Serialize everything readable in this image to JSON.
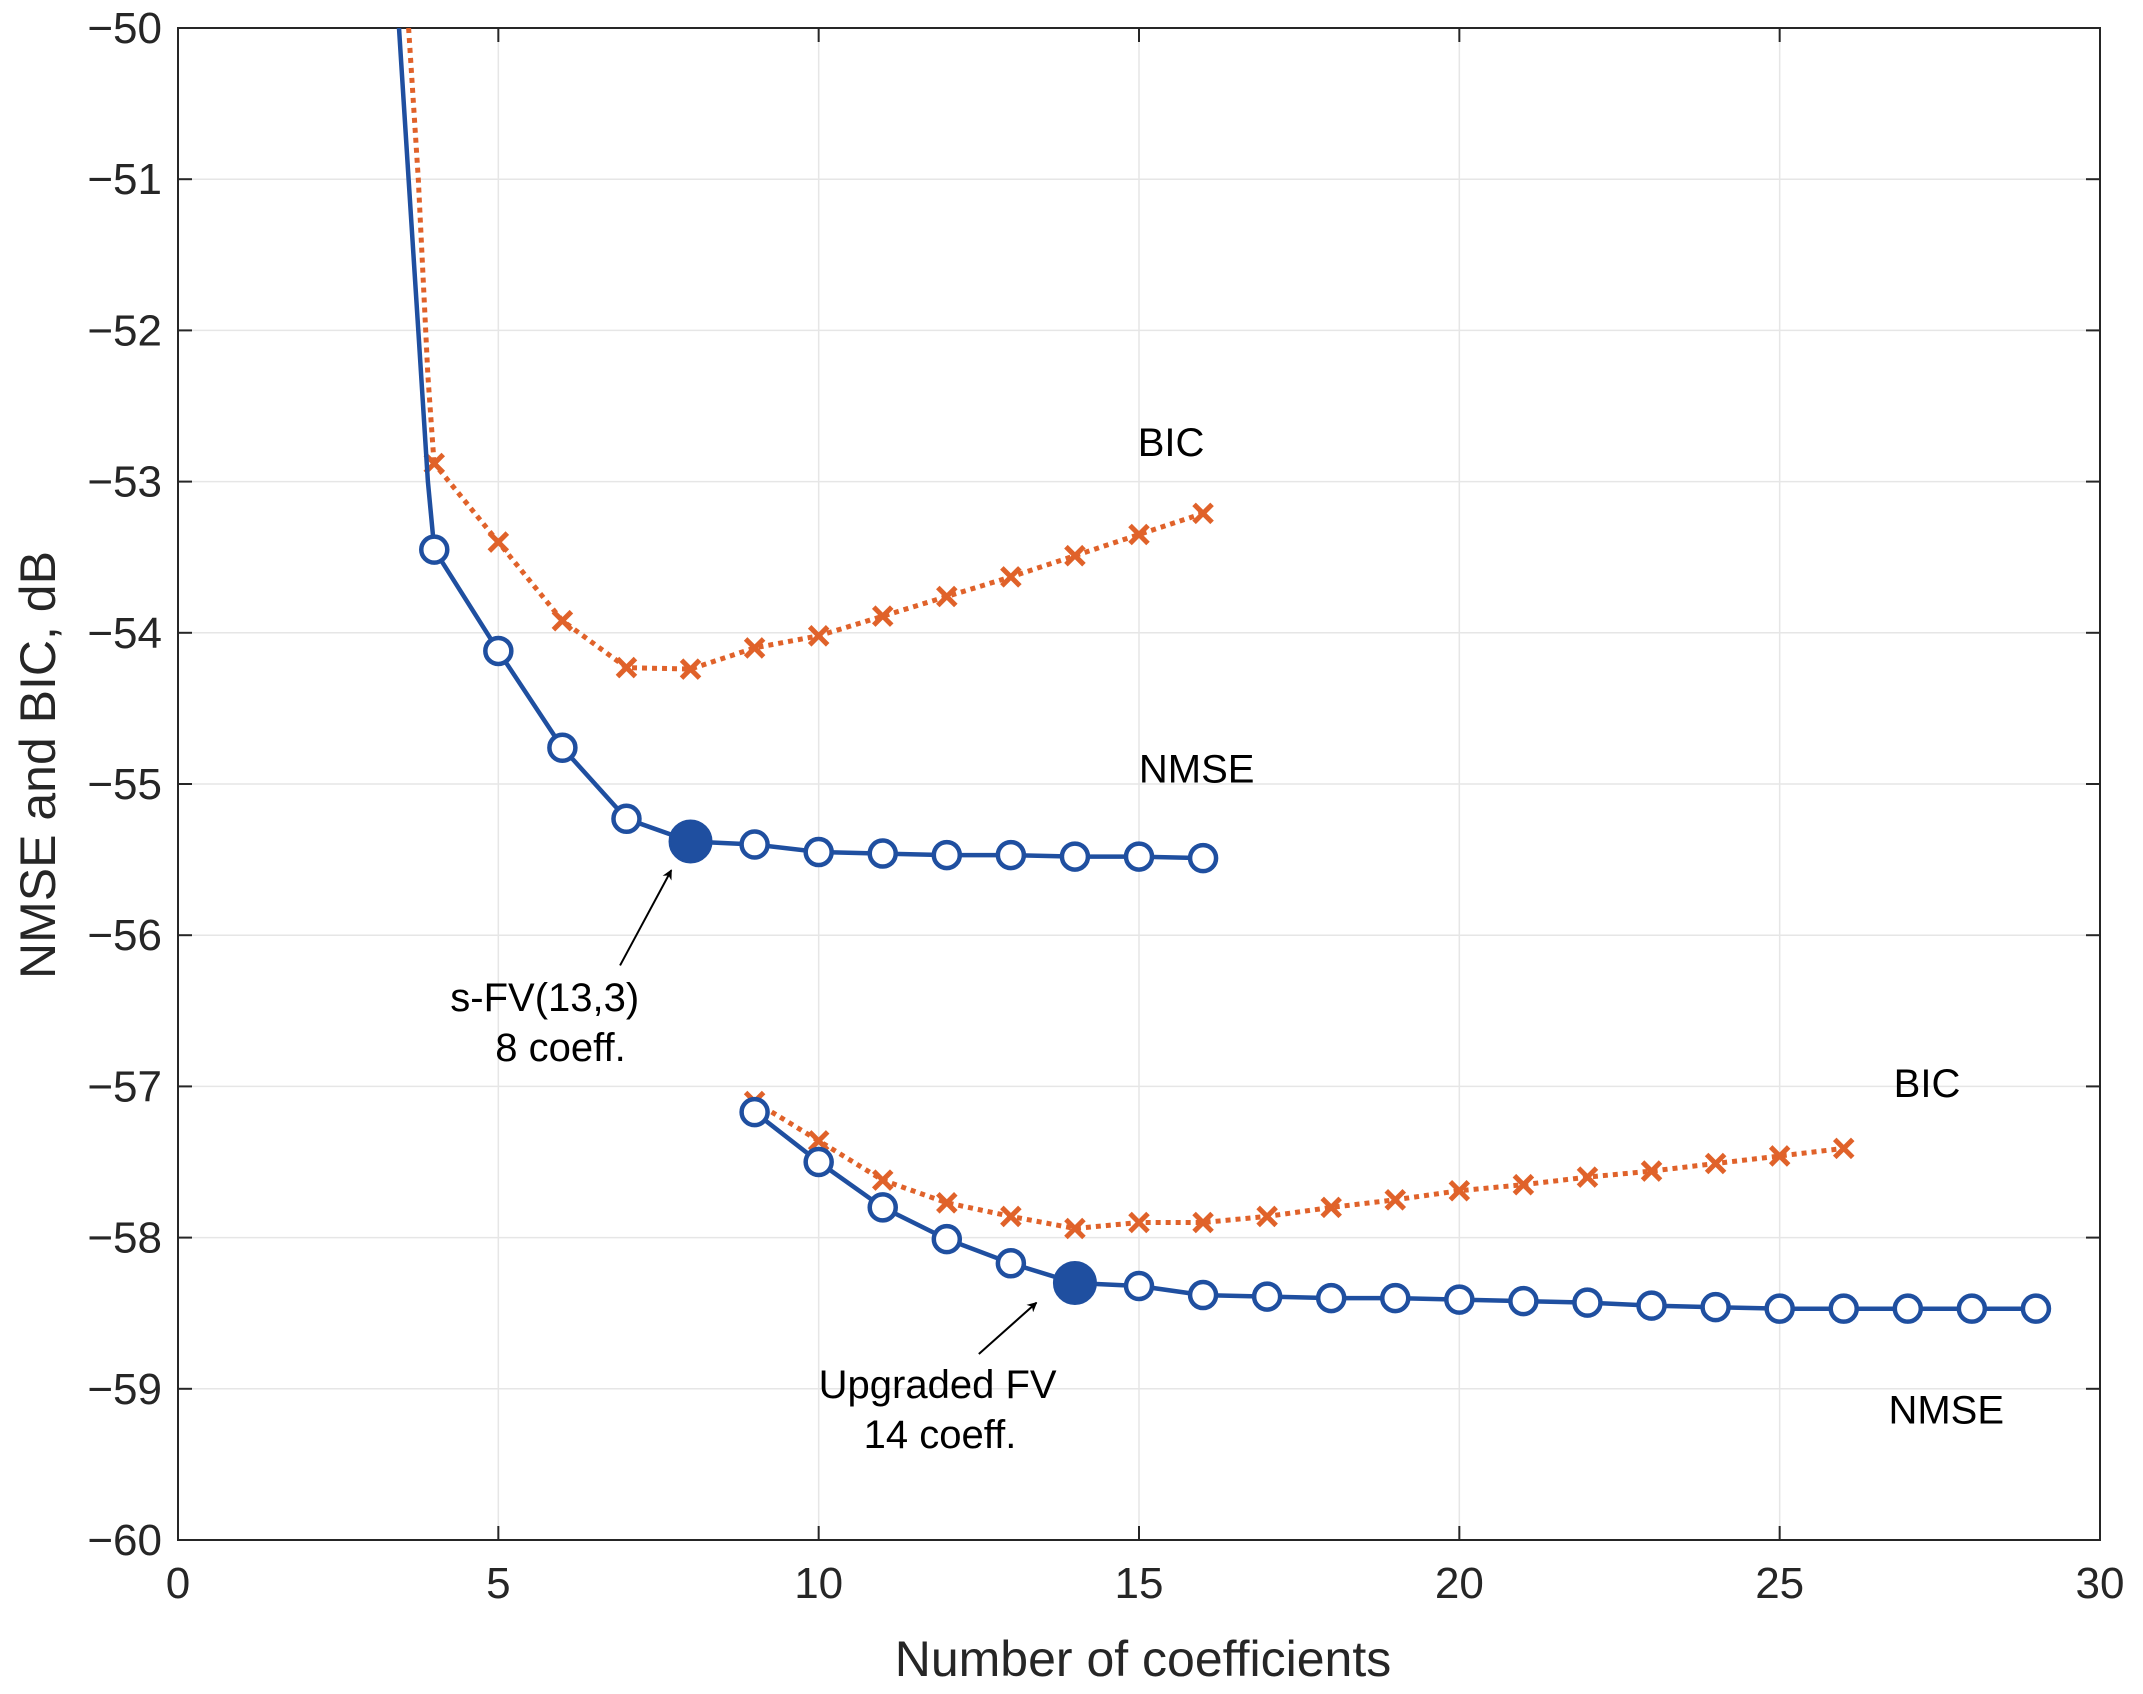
{
  "chart_data": {
    "type": "line",
    "xlabel": "Number of coefficients",
    "ylabel": "NMSE and BIC, dB",
    "xlim": [
      0,
      30
    ],
    "ylim": [
      -60,
      -50
    ],
    "xticks": [
      0,
      5,
      10,
      15,
      20,
      25,
      30
    ],
    "yticks": [
      -60,
      -59,
      -58,
      -57,
      -56,
      -55,
      -54,
      -53,
      -52,
      -51,
      -50
    ],
    "xtick_labels": [
      "0",
      "5",
      "10",
      "15",
      "20",
      "25",
      "30"
    ],
    "ytick_labels": [
      "−60",
      "−59",
      "−58",
      "−57",
      "−56",
      "−55",
      "−54",
      "−53",
      "−52",
      "−51",
      "−50"
    ],
    "grid": true,
    "colors": {
      "nmse": "#1f4fa0",
      "bic": "#e0622a"
    },
    "series": [
      {
        "name": "BIC",
        "style": "dotted-x",
        "color": "#e0622a",
        "curve": {
          "x": [
            3.6,
            3.75,
            3.9,
            4.0
          ],
          "y": [
            -50.0,
            -51.0,
            -52.3,
            -52.9
          ]
        },
        "x": [
          4,
          5,
          6,
          7,
          8,
          9,
          10,
          11,
          12,
          13,
          14,
          15,
          16
        ],
        "y": [
          -52.88,
          -53.4,
          -53.92,
          -54.23,
          -54.24,
          -54.1,
          -54.02,
          -53.89,
          -53.76,
          -53.63,
          -53.49,
          -53.35,
          -53.21
        ]
      },
      {
        "name": "NMSE",
        "style": "solid-o",
        "color": "#1f4fa0",
        "curve": {
          "x": [
            3.45,
            3.6,
            3.75,
            3.9,
            4.0
          ],
          "y": [
            -50.0,
            -51.0,
            -52.0,
            -53.0,
            -53.45
          ]
        },
        "x": [
          4,
          5,
          6,
          7,
          8,
          9,
          10,
          11,
          12,
          13,
          14,
          15,
          16
        ],
        "y": [
          -53.45,
          -54.12,
          -54.76,
          -55.23,
          -55.38,
          -55.4,
          -55.45,
          -55.46,
          -55.47,
          -55.47,
          -55.48,
          -55.48,
          -55.49
        ],
        "highlight": {
          "x": 8,
          "y": -55.38
        }
      },
      {
        "name": "BIC",
        "style": "dotted-x",
        "color": "#e0622a",
        "x": [
          9,
          10,
          11,
          12,
          13,
          14,
          15,
          16,
          17,
          18,
          19,
          20,
          21,
          22,
          23,
          24,
          25,
          26
        ],
        "y": [
          -57.1,
          -57.36,
          -57.62,
          -57.77,
          -57.86,
          -57.94,
          -57.9,
          -57.9,
          -57.86,
          -57.8,
          -57.75,
          -57.69,
          -57.65,
          -57.6,
          -57.56,
          -57.51,
          -57.46,
          -57.41
        ]
      },
      {
        "name": "NMSE",
        "style": "solid-o",
        "color": "#1f4fa0",
        "x": [
          9,
          10,
          11,
          12,
          13,
          14,
          15,
          16,
          17,
          18,
          19,
          20,
          21,
          22,
          23,
          24,
          25,
          26,
          27,
          28,
          29
        ],
        "y": [
          -57.17,
          -57.5,
          -57.8,
          -58.01,
          -58.17,
          -58.3,
          -58.32,
          -58.38,
          -58.39,
          -58.4,
          -58.4,
          -58.41,
          -58.42,
          -58.43,
          -58.45,
          -58.46,
          -58.47,
          -58.47,
          -58.47,
          -58.47,
          -58.47
        ],
        "highlight": {
          "x": 14,
          "y": -58.3
        }
      }
    ],
    "labels": [
      {
        "text": "BIC",
        "x": 15.5,
        "y": -52.83
      },
      {
        "text": "NMSE",
        "x": 15.9,
        "y": -54.99
      },
      {
        "text": "BIC",
        "x": 27.3,
        "y": -57.07
      },
      {
        "text": "NMSE",
        "x": 27.6,
        "y": -59.23
      }
    ],
    "annotations": [
      {
        "lines": [
          "s-FV(13,3)",
          "8 coeff."
        ],
        "text_x": 4.25,
        "text_y": -56.5,
        "arrow_from": [
          6.9,
          -56.2
        ],
        "arrow_to": [
          7.7,
          -55.57
        ]
      },
      {
        "lines": [
          "Upgraded FV",
          "14 coeff."
        ],
        "text_x": 10.0,
        "text_y": -59.06,
        "arrow_from": [
          12.5,
          -58.77
        ],
        "arrow_to": [
          13.4,
          -58.43
        ]
      }
    ]
  }
}
